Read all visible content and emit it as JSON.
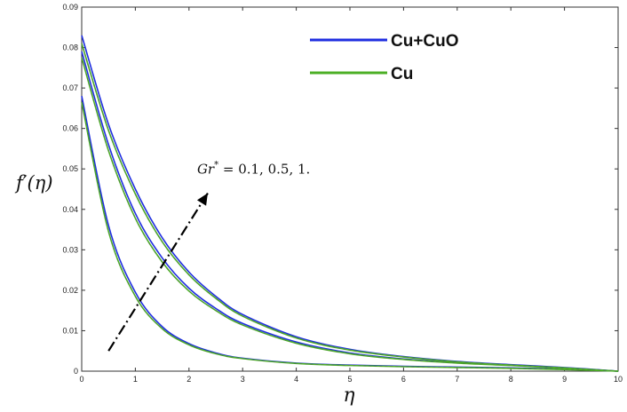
{
  "chart_data": {
    "type": "line",
    "xlabel": "η",
    "ylabel": "f′(η)",
    "xlim": [
      0,
      10
    ],
    "ylim": [
      0,
      0.09
    ],
    "x_ticks": [
      "0",
      "1",
      "2",
      "3",
      "4",
      "5",
      "6",
      "7",
      "8",
      "9",
      "10"
    ],
    "y_ticks": [
      "0",
      "0.01",
      "0.02",
      "0.03",
      "0.04",
      "0.05",
      "0.06",
      "0.07",
      "0.08",
      "0.09"
    ],
    "grid": false,
    "legend_position": "top-right",
    "x": [
      0,
      0.5,
      1,
      1.5,
      2,
      2.5,
      3,
      4,
      5,
      6,
      7,
      8,
      9,
      10
    ],
    "series": [
      {
        "name": "Cu+CuO",
        "color": "#1f2ee0",
        "group": 0,
        "values": [
          0.068,
          0.036,
          0.0195,
          0.011,
          0.0068,
          0.0045,
          0.0032,
          0.002,
          0.0015,
          0.0012,
          0.001,
          0.0008,
          0.0005,
          0
        ]
      },
      {
        "name": "Cu+CuO",
        "color": "#1f2ee0",
        "group": 1,
        "values": [
          0.079,
          0.056,
          0.039,
          0.028,
          0.0205,
          0.0155,
          0.0118,
          0.0072,
          0.0045,
          0.003,
          0.0021,
          0.0015,
          0.0008,
          0
        ]
      },
      {
        "name": "Cu+CuO",
        "color": "#1f2ee0",
        "group": 2,
        "values": [
          0.083,
          0.061,
          0.045,
          0.033,
          0.0245,
          0.0185,
          0.014,
          0.0085,
          0.0054,
          0.0036,
          0.0024,
          0.0016,
          0.0009,
          0
        ]
      },
      {
        "name": "Cu",
        "color": "#4caf26",
        "group": 0,
        "values": [
          0.0665,
          0.0345,
          0.0185,
          0.0105,
          0.0065,
          0.0043,
          0.0031,
          0.0019,
          0.0014,
          0.0011,
          0.0009,
          0.0007,
          0.0004,
          0
        ]
      },
      {
        "name": "Cu",
        "color": "#4caf26",
        "group": 1,
        "values": [
          0.0775,
          0.0545,
          0.0378,
          0.027,
          0.0198,
          0.015,
          0.0114,
          0.0069,
          0.0043,
          0.0029,
          0.002,
          0.0014,
          0.0007,
          0
        ]
      },
      {
        "name": "Cu",
        "color": "#4caf26",
        "group": 2,
        "values": [
          0.081,
          0.0595,
          0.0438,
          0.032,
          0.0238,
          0.018,
          0.0136,
          0.0082,
          0.0052,
          0.0035,
          0.0023,
          0.0015,
          0.0008,
          0
        ]
      }
    ],
    "legend": [
      {
        "label": "Cu+CuO",
        "color": "#1f2ee0"
      },
      {
        "label": "Cu",
        "color": "#4caf26"
      }
    ],
    "annotation": {
      "text_main": "Gr",
      "text_sup": "*",
      "text_rest": " = 0.1, 0.5, 1.",
      "arrow_from": [
        0.5,
        0.005
      ],
      "arrow_to": [
        2.35,
        0.044
      ]
    }
  }
}
